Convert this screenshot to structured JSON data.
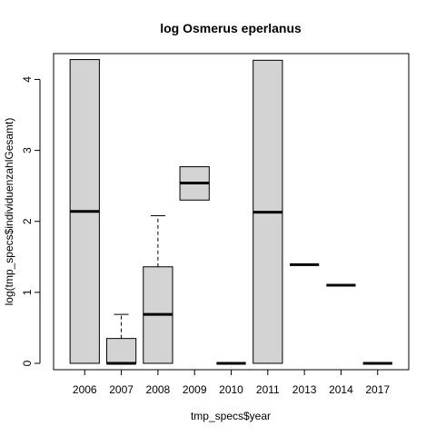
{
  "chart_data": {
    "type": "boxplot",
    "title": "log Osmerus eperlanus",
    "xlabel": "tmp_specs$year",
    "ylabel": "log(tmp_specs$individuenzahlGesamt)",
    "ylim": [
      -0.2,
      4.45
    ],
    "yticks": [
      "0",
      "1",
      "2",
      "3",
      "4"
    ],
    "box_fill": "#d3d3d3",
    "categories": [
      "2006",
      "2007",
      "2008",
      "2009",
      "2010",
      "2011",
      "2013",
      "2014",
      "2017"
    ],
    "boxes": [
      {
        "label": "2006",
        "min": 0.0,
        "q1": 0.0,
        "median": 2.14,
        "q3": 4.28,
        "max": 4.28
      },
      {
        "label": "2007",
        "min": 0.0,
        "q1": 0.0,
        "median": 0.0,
        "q3": 0.35,
        "max": 0.69
      },
      {
        "label": "2008",
        "min": 0.0,
        "q1": 0.0,
        "median": 0.69,
        "q3": 1.36,
        "max": 2.08
      },
      {
        "label": "2009",
        "min": 2.3,
        "q1": 2.3,
        "median": 2.54,
        "q3": 2.77,
        "max": 2.77
      },
      {
        "label": "2010",
        "min": 0.0,
        "q1": 0.0,
        "median": 0.0,
        "q3": 0.0,
        "max": 0.0
      },
      {
        "label": "2011",
        "min": 0.0,
        "q1": 0.0,
        "median": 2.13,
        "q3": 4.27,
        "max": 4.27
      },
      {
        "label": "2013",
        "min": 1.39,
        "q1": 1.39,
        "median": 1.39,
        "q3": 1.39,
        "max": 1.39
      },
      {
        "label": "2014",
        "min": 1.1,
        "q1": 1.1,
        "median": 1.1,
        "q3": 1.1,
        "max": 1.1
      },
      {
        "label": "2017",
        "min": 0.0,
        "q1": 0.0,
        "median": 0.0,
        "q3": 0.0,
        "max": 0.0
      }
    ]
  }
}
